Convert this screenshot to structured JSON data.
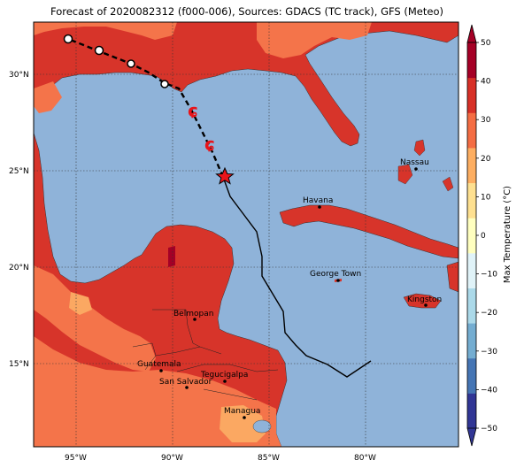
{
  "title": "Forecast of 2020082312 (f000-006), Sources: GDACS (TC track), GFS (Meteo)",
  "lat_labels": [
    "30°N",
    "25°N",
    "20°N",
    "15°N"
  ],
  "lon_labels": [
    "95°W",
    "90°W",
    "85°W",
    "80°W"
  ],
  "colorbar": {
    "label": "Max Temperature (°C)",
    "ticks": [
      "50",
      "40",
      "30",
      "20",
      "10",
      "0",
      "−10",
      "−20",
      "−30",
      "−40",
      "−50"
    ],
    "colors": [
      "#313695",
      "#4575b4",
      "#74add1",
      "#abd9e9",
      "#e0f3f8",
      "#ffffbf",
      "#fee090",
      "#fdae61",
      "#f46d43",
      "#d73027",
      "#a50026"
    ]
  },
  "colors": {
    "ocean": "#8fb3d9",
    "land_hot": "#d7342a",
    "land_warm": "#f4744a",
    "land_cool": "#fba862",
    "track": "#000000",
    "storm_icon": "#e8141a"
  },
  "cities": [
    {
      "name": "Nassau"
    },
    {
      "name": "Havana"
    },
    {
      "name": "George Town"
    },
    {
      "name": "Belmopan"
    },
    {
      "name": "Kingston"
    },
    {
      "name": "Guatemala"
    },
    {
      "name": "Tegucigalpa"
    },
    {
      "name": "San Salvador"
    },
    {
      "name": "Managua"
    }
  ]
}
